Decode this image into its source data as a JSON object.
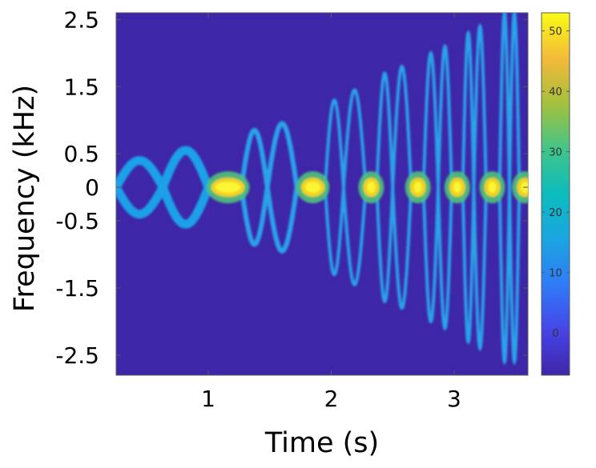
{
  "chart_data": {
    "type": "heatmap",
    "title": "",
    "xlabel": "Time (s)",
    "ylabel": "Frequency (kHz)",
    "xlim": [
      0.25,
      3.6
    ],
    "ylim": [
      -2.8,
      2.6
    ],
    "x_ticks": [
      1,
      2,
      3
    ],
    "x_tick_labels": [
      "1",
      "2",
      "3"
    ],
    "y_tick_labels": [
      {
        "value": 2.5,
        "label": "2.5"
      },
      {
        "value": 1.5,
        "label": "1.5"
      },
      {
        "value": 0.5,
        "label": "0.5"
      },
      {
        "value": 0,
        "label": "0"
      },
      {
        "value": -0.5,
        "label": "-0.5"
      },
      {
        "value": -1.5,
        "label": "-1.5"
      },
      {
        "value": -2.5,
        "label": "-2.5"
      }
    ],
    "colorbar": {
      "colormap": "parula",
      "range": [
        -7,
        53
      ],
      "ticks": [
        0,
        10,
        20,
        30,
        40,
        50
      ],
      "tick_labels": [
        "0",
        "10",
        "20",
        "30",
        "40",
        "50"
      ]
    },
    "signal": {
      "description_free": true,
      "max_deviation_khz": [
        0.4,
        2.6
      ],
      "lobes": [
        {
          "t_start": 0.25,
          "t_end": 0.63,
          "amplitude": 0.4
        },
        {
          "t_start": 0.63,
          "t_end": 1.0,
          "amplitude": 0.55
        },
        {
          "t_start": 1.27,
          "t_end": 1.48,
          "amplitude": 0.85
        },
        {
          "t_start": 1.48,
          "t_end": 1.72,
          "amplitude": 0.95
        },
        {
          "t_start": 1.95,
          "t_end": 2.1,
          "amplitude": 1.3
        },
        {
          "t_start": 2.1,
          "t_end": 2.28,
          "amplitude": 1.45
        },
        {
          "t_start": 2.37,
          "t_end": 2.5,
          "amplitude": 1.7
        },
        {
          "t_start": 2.5,
          "t_end": 2.65,
          "amplitude": 1.8
        },
        {
          "t_start": 2.75,
          "t_end": 2.87,
          "amplitude": 2.0
        },
        {
          "t_start": 2.87,
          "t_end": 2.98,
          "amplitude": 2.1
        },
        {
          "t_start": 3.07,
          "t_end": 3.16,
          "amplitude": 2.3
        },
        {
          "t_start": 3.16,
          "t_end": 3.26,
          "amplitude": 2.4
        },
        {
          "t_start": 3.37,
          "t_end": 3.45,
          "amplitude": 2.6
        },
        {
          "t_start": 3.45,
          "t_end": 3.53,
          "amplitude": 2.6
        }
      ],
      "hot_spots": [
        {
          "t_start": 1.05,
          "t_end": 1.27
        },
        {
          "t_start": 1.78,
          "t_end": 1.92
        },
        {
          "t_start": 2.29,
          "t_end": 2.36
        },
        {
          "t_start": 2.67,
          "t_end": 2.74
        },
        {
          "t_start": 2.99,
          "t_end": 3.06
        },
        {
          "t_start": 3.28,
          "t_end": 3.34
        },
        {
          "t_start": 3.55,
          "t_end": 3.6
        }
      ]
    }
  }
}
